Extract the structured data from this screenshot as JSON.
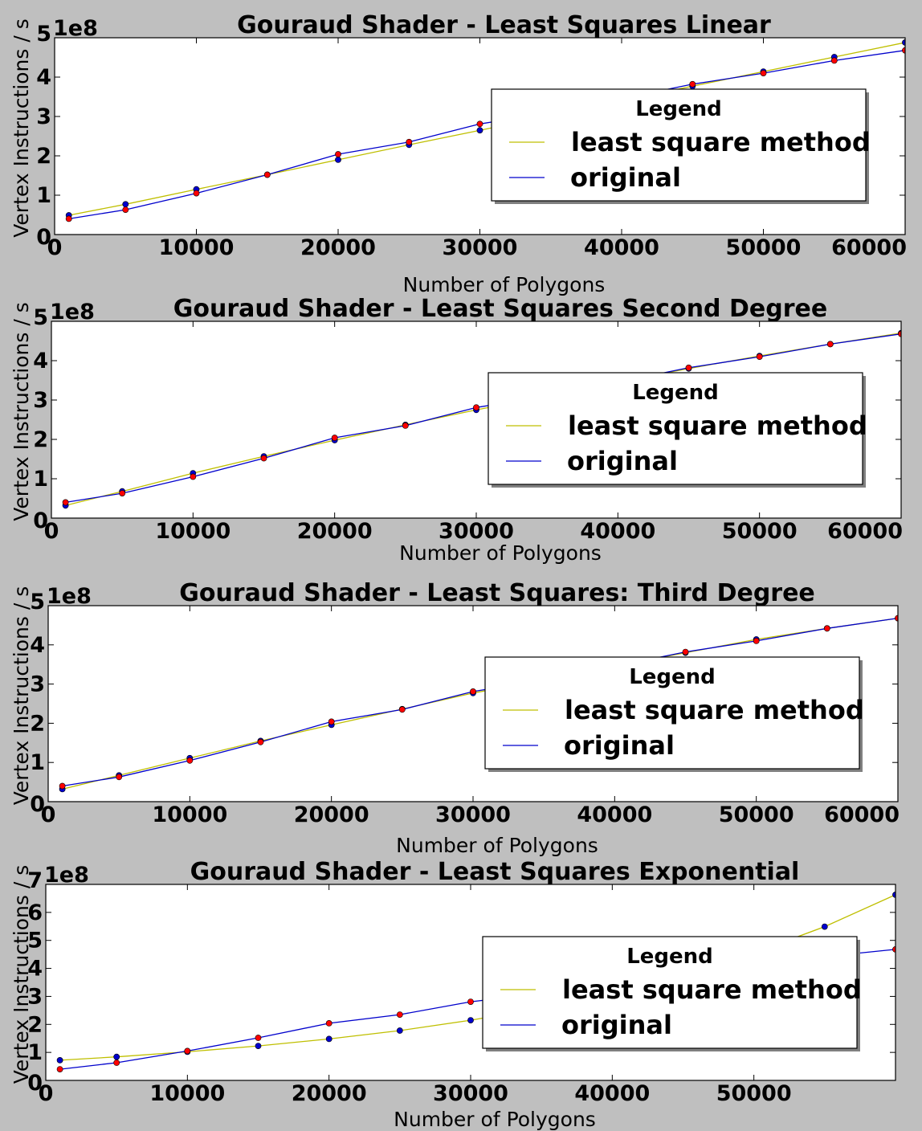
{
  "colors": {
    "fit": "#bfbf00",
    "original": "#0000cc",
    "red_marker": "#ff0000",
    "blue_marker": "#0000cc"
  },
  "chart_data": [
    {
      "type": "line",
      "title": "Gouraud Shader - Least Squares Linear",
      "xlabel": "Number of Polygons",
      "ylabel": "Vertex Instructions / s",
      "y_multiplier": "1e8",
      "xlim": [
        0,
        60000
      ],
      "ylim": [
        0,
        5
      ],
      "xticks": [
        0,
        10000,
        20000,
        30000,
        40000,
        50000,
        60000
      ],
      "yticks": [
        0,
        1,
        2,
        3,
        4,
        5
      ],
      "legend": {
        "title": "Legend",
        "position": "center-right"
      },
      "x": [
        1000,
        5000,
        10000,
        15000,
        20000,
        25000,
        30000,
        35000,
        40000,
        45000,
        50000,
        55000,
        60000
      ],
      "series": [
        {
          "name": "least square method",
          "color_key": "fit",
          "marker_key": "blue_marker",
          "values": [
            0.49,
            0.77,
            1.15,
            1.52,
            1.9,
            2.28,
            2.65,
            3.02,
            3.4,
            3.77,
            4.14,
            4.51,
            4.88
          ]
        },
        {
          "name": "original",
          "color_key": "original",
          "marker_key": "red_marker",
          "values": [
            0.4,
            0.63,
            1.05,
            1.52,
            2.04,
            2.35,
            2.81,
            3.1,
            3.45,
            3.82,
            4.1,
            4.42,
            4.68
          ]
        }
      ]
    },
    {
      "type": "line",
      "title": "Gouraud Shader - Least Squares Second Degree",
      "xlabel": "Number of Polygons",
      "ylabel": "Vertex Instructions / s",
      "y_multiplier": "1e8",
      "xlim": [
        0,
        60000
      ],
      "ylim": [
        0,
        5
      ],
      "xticks": [
        0,
        10000,
        20000,
        30000,
        40000,
        50000,
        60000
      ],
      "yticks": [
        0,
        1,
        2,
        3,
        4,
        5
      ],
      "legend": {
        "title": "Legend",
        "position": "center-right"
      },
      "x": [
        1000,
        5000,
        10000,
        15000,
        20000,
        25000,
        30000,
        35000,
        40000,
        45000,
        50000,
        55000,
        60000
      ],
      "series": [
        {
          "name": "least square method",
          "color_key": "fit",
          "marker_key": "blue_marker",
          "values": [
            0.32,
            0.68,
            1.14,
            1.57,
            1.98,
            2.37,
            2.75,
            3.1,
            3.46,
            3.8,
            4.12,
            4.42,
            4.7
          ]
        },
        {
          "name": "original",
          "color_key": "original",
          "marker_key": "red_marker",
          "values": [
            0.4,
            0.63,
            1.05,
            1.52,
            2.04,
            2.35,
            2.81,
            3.1,
            3.45,
            3.82,
            4.1,
            4.42,
            4.68
          ]
        }
      ]
    },
    {
      "type": "line",
      "title": "Gouraud Shader - Least Squares: Third Degree",
      "xlabel": "Number of Polygons",
      "ylabel": "Vertex Instructions / s",
      "y_multiplier": "1e8",
      "xlim": [
        0,
        60000
      ],
      "ylim": [
        0,
        5
      ],
      "xticks": [
        0,
        10000,
        20000,
        30000,
        40000,
        50000,
        60000
      ],
      "yticks": [
        0,
        1,
        2,
        3,
        4,
        5
      ],
      "legend": {
        "title": "Legend",
        "position": "center-right"
      },
      "x": [
        1000,
        5000,
        10000,
        15000,
        20000,
        25000,
        30000,
        35000,
        40000,
        45000,
        50000,
        55000,
        60000
      ],
      "series": [
        {
          "name": "least square method",
          "color_key": "fit",
          "marker_key": "blue_marker",
          "values": [
            0.32,
            0.67,
            1.11,
            1.55,
            1.96,
            2.36,
            2.77,
            3.1,
            3.46,
            3.8,
            4.14,
            4.42,
            4.68
          ]
        },
        {
          "name": "original",
          "color_key": "original",
          "marker_key": "red_marker",
          "values": [
            0.4,
            0.63,
            1.05,
            1.52,
            2.04,
            2.35,
            2.81,
            3.1,
            3.45,
            3.82,
            4.1,
            4.42,
            4.68
          ]
        }
      ]
    },
    {
      "type": "line",
      "title": "Gouraud Shader - Least Squares Exponential",
      "xlabel": "Number of Polygons",
      "ylabel": "Vertex Instructions / s",
      "y_multiplier": "1e8",
      "xlim": [
        0,
        60000
      ],
      "ylim": [
        0,
        7
      ],
      "xticks": [
        0,
        10000,
        20000,
        30000,
        40000,
        50000
      ],
      "yticks": [
        0,
        1,
        2,
        3,
        4,
        5,
        6,
        7
      ],
      "legend": {
        "title": "Legend",
        "position": "center-right"
      },
      "x": [
        1000,
        5000,
        10000,
        15000,
        20000,
        25000,
        30000,
        35000,
        40000,
        45000,
        50000,
        55000,
        60000
      ],
      "series": [
        {
          "name": "least square method",
          "color_key": "fit",
          "marker_key": "blue_marker",
          "values": [
            0.72,
            0.84,
            1.02,
            1.23,
            1.48,
            1.78,
            2.15,
            2.59,
            3.13,
            3.78,
            4.55,
            5.49,
            6.63
          ]
        },
        {
          "name": "original",
          "color_key": "original",
          "marker_key": "red_marker",
          "values": [
            0.4,
            0.63,
            1.05,
            1.52,
            2.04,
            2.35,
            2.81,
            3.1,
            3.45,
            3.82,
            4.1,
            4.42,
            4.68
          ]
        }
      ]
    }
  ]
}
